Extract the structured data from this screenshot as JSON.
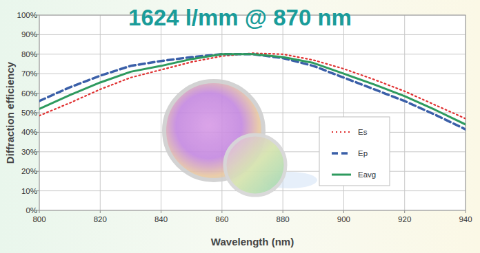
{
  "chart_data": {
    "type": "line",
    "title": "1624 l/mm @ 870 nm",
    "x_label": "Wavelength (nm)",
    "y_label": "Diffraction efficiency",
    "x": [
      800,
      810,
      820,
      830,
      840,
      850,
      860,
      870,
      880,
      890,
      900,
      910,
      920,
      930,
      940
    ],
    "series": [
      {
        "name": "Es",
        "color": "#e03030",
        "line_style": "dotted",
        "values": [
          48.5,
          55,
          62,
          68,
          72,
          76,
          79,
          80.5,
          80,
          77,
          72.5,
          67,
          61,
          54,
          47
        ]
      },
      {
        "name": "Ep",
        "color": "#3a5fa8",
        "line_style": "dashed",
        "values": [
          56,
          63,
          69,
          74,
          76.5,
          78.5,
          80,
          80,
          78,
          74,
          68,
          62,
          56,
          49,
          41.5
        ]
      },
      {
        "name": "Eavg",
        "color": "#2e9a5e",
        "line_style": "solid",
        "values": [
          52,
          59,
          65.5,
          71,
          74,
          77.5,
          80,
          80,
          78.5,
          75.5,
          70,
          64.5,
          58.5,
          51.5,
          44
        ]
      }
    ],
    "xlim": [
      800,
      940
    ],
    "xticks": [
      800,
      820,
      840,
      860,
      880,
      900,
      920,
      940
    ],
    "ylim": [
      0,
      100
    ],
    "yticks": [
      {
        "value": 0,
        "label": "0%"
      },
      {
        "value": 10,
        "label": "10%"
      },
      {
        "value": 20,
        "label": "20%"
      },
      {
        "value": 30,
        "label": "30%"
      },
      {
        "value": 40,
        "label": "40%"
      },
      {
        "value": 50,
        "label": "50%"
      },
      {
        "value": 60,
        "label": "60%"
      },
      {
        "value": 70,
        "label": "70%"
      },
      {
        "value": 80,
        "label": "80%"
      },
      {
        "value": 90,
        "label": "90%"
      },
      {
        "value": 100,
        "label": "100%"
      }
    ],
    "grid": true,
    "legend": "right"
  }
}
